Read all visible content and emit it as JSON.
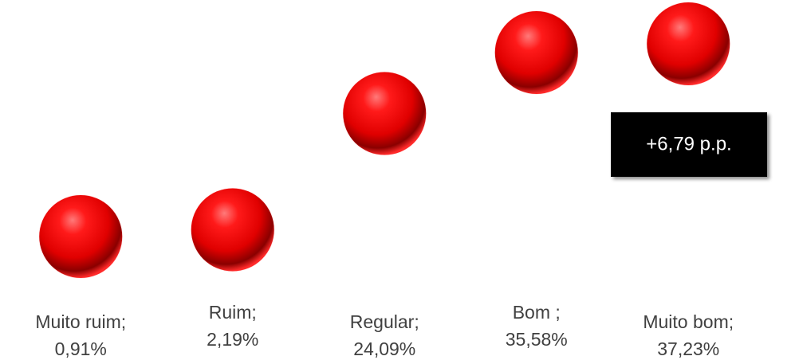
{
  "chart_data": {
    "type": "scatter",
    "categories": [
      "Muito ruim;",
      "Ruim;",
      "Regular;",
      "Bom ;",
      "Muito bom;"
    ],
    "values": [
      0.91,
      2.19,
      24.09,
      35.58,
      37.23
    ],
    "value_labels": [
      "0,91%",
      "2,19%",
      "24,09%",
      "35,58%",
      "37,23%"
    ],
    "color": "#ff0000",
    "annotation": "+6,79 p.p."
  }
}
